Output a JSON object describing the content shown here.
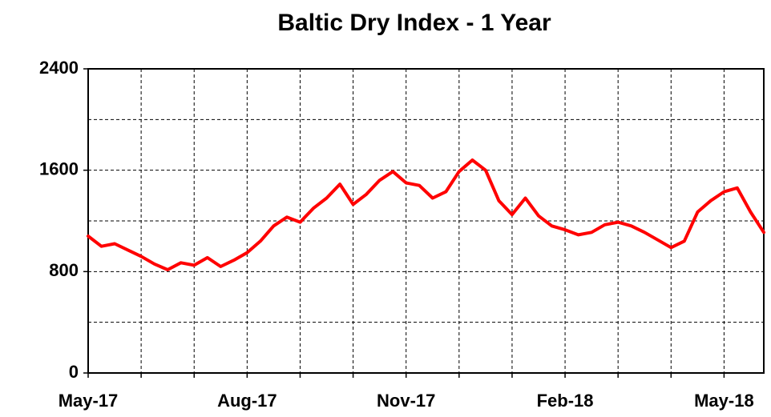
{
  "chart_data": {
    "type": "line",
    "title": "Baltic  Dry  Index - 1 Year",
    "categories": [
      "May-17",
      null,
      null,
      null,
      null,
      null,
      null,
      null,
      null,
      null,
      null,
      null,
      "Aug-17",
      null,
      null,
      null,
      null,
      null,
      null,
      null,
      null,
      null,
      null,
      null,
      "Nov-17",
      null,
      null,
      null,
      null,
      null,
      null,
      null,
      null,
      null,
      null,
      null,
      "Feb-18",
      null,
      null,
      null,
      null,
      null,
      null,
      null,
      null,
      null,
      null,
      null,
      "May-18",
      null,
      null,
      null
    ],
    "series": [
      {
        "name": "Baltic Dry Index",
        "color": "#ff0000",
        "values": [
          1080,
          1000,
          1020,
          970,
          920,
          860,
          815,
          870,
          850,
          910,
          840,
          890,
          950,
          1040,
          1160,
          1230,
          1190,
          1300,
          1380,
          1490,
          1330,
          1410,
          1520,
          1590,
          1500,
          1480,
          1380,
          1430,
          1590,
          1680,
          1600,
          1360,
          1250,
          1380,
          1240,
          1160,
          1130,
          1090,
          1110,
          1170,
          1190,
          1160,
          1110,
          1050,
          990,
          1040,
          1270,
          1360,
          1430,
          1460,
          1270,
          1110
        ]
      }
    ],
    "ylim": [
      0,
      2400
    ],
    "yticks": [
      0,
      800,
      1600,
      2400
    ],
    "minor_yticks": [
      400,
      1200,
      2000
    ],
    "grid": true
  }
}
